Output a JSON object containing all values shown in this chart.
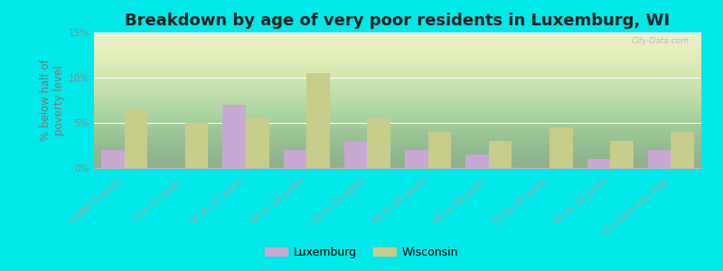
{
  "title": "Breakdown by age of very poor residents in Luxemburg, WI",
  "ylabel": "% below half of\npoverty level",
  "categories": [
    "Under 6 years",
    "6 to 11 years",
    "12 to 17 years",
    "18 to 24 years",
    "25 to 34 years",
    "35 to 44 years",
    "45 to 54 years",
    "55 to 64 years",
    "65 to 74 years",
    "75 years and over"
  ],
  "luxemburg": [
    2.0,
    0.0,
    7.0,
    2.0,
    3.0,
    2.0,
    1.5,
    0.0,
    1.0,
    2.0
  ],
  "wisconsin": [
    6.5,
    5.0,
    5.5,
    10.5,
    5.5,
    4.0,
    3.0,
    4.5,
    3.0,
    4.0
  ],
  "luxemburg_color": "#c9a8d4",
  "wisconsin_color": "#c8cc8a",
  "background_outer": "#00e8e8",
  "title_fontsize": 13,
  "ylabel_fontsize": 8.5,
  "tick_fontsize": 7.5,
  "ylim": [
    0,
    15
  ],
  "yticks": [
    0,
    5,
    10,
    15
  ],
  "ytick_labels": [
    "0%",
    "5%",
    "10%",
    "15%"
  ],
  "bar_width": 0.38,
  "legend_luxemburg": "Luxemburg",
  "legend_wisconsin": "Wisconsin"
}
